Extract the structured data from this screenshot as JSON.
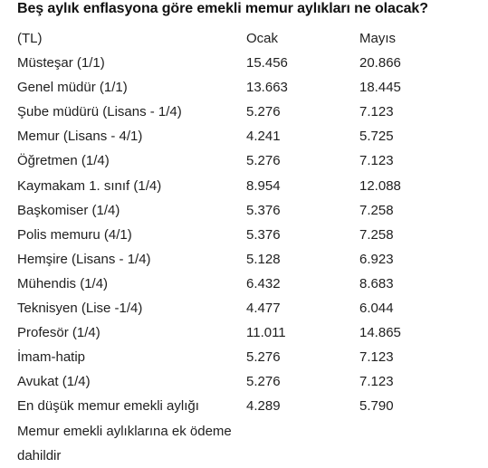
{
  "title": "Beş aylık enflasyona göre emekli memur aylıkları ne olacak?",
  "header": {
    "unit": "(TL)",
    "col1": "Ocak",
    "col2": "Mayıs"
  },
  "rows": [
    {
      "label": "Müsteşar (1/1)",
      "ocak": "15.456",
      "mayis": "20.866"
    },
    {
      "label": "Genel müdür (1/1)",
      "ocak": "13.663",
      "mayis": "18.445"
    },
    {
      "label": "Şube müdürü (Lisans - 1/4)",
      "ocak": "5.276",
      "mayis": "7.123"
    },
    {
      "label": "Memur (Lisans - 4/1)",
      "ocak": "4.241",
      "mayis": "5.725"
    },
    {
      "label": "Öğretmen (1/4)",
      "ocak": "5.276",
      "mayis": "7.123"
    },
    {
      "label": "Kaymakam 1. sınıf (1/4)",
      "ocak": "8.954",
      "mayis": "12.088"
    },
    {
      "label": "Başkomiser (1/4)",
      "ocak": "5.376",
      "mayis": "7.258"
    },
    {
      "label": "Polis memuru (4/1)",
      "ocak": "5.376",
      "mayis": "7.258"
    },
    {
      "label": "Hemşire (Lisans - 1/4)",
      "ocak": "5.128",
      "mayis": "6.923"
    },
    {
      "label": "Mühendis (1/4)",
      "ocak": "6.432",
      "mayis": "8.683"
    },
    {
      "label": "Teknisyen (Lise -1/4)",
      "ocak": "4.477",
      "mayis": "6.044"
    },
    {
      "label": "Profesör (1/4)",
      "ocak": "11.011",
      "mayis": "14.865"
    },
    {
      "label": "İmam-hatip",
      "ocak": "5.276",
      "mayis": "7.123"
    },
    {
      "label": "Avukat (1/4)",
      "ocak": "5.276",
      "mayis": "7.123"
    },
    {
      "label": "En düşük memur emekli aylığı",
      "ocak": "4.289",
      "mayis": "5.790"
    }
  ],
  "note": "Memur emekli aylıklarına ek ödeme dahildir"
}
